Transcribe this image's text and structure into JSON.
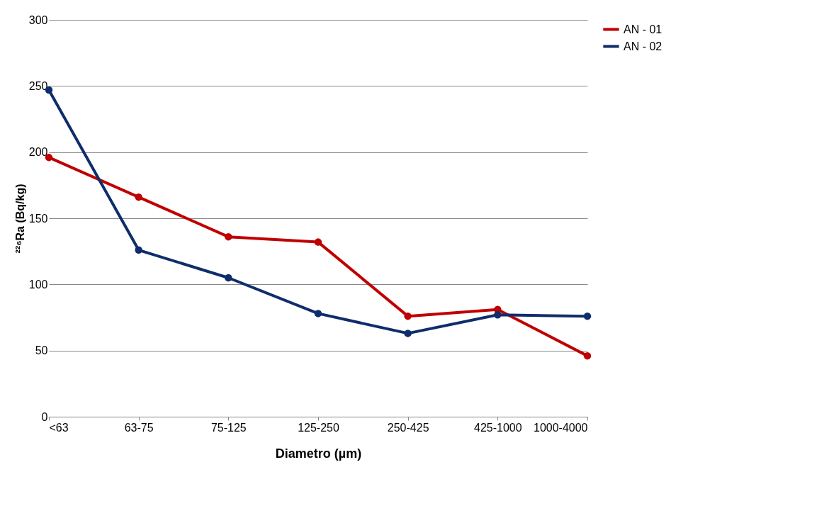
{
  "chart_data": {
    "type": "line",
    "xlabel": "Diametro (µm)",
    "ylabel": "²²⁶Ra (Bq/kg)",
    "categories": [
      "<63",
      "63-75",
      "75-125",
      "125-250",
      "250-425",
      "425-1000",
      "1000-4000"
    ],
    "series": [
      {
        "name": "AN - 01",
        "color": "#c00000",
        "values": [
          196,
          166,
          136,
          132,
          76,
          81,
          46
        ]
      },
      {
        "name": "AN - 02",
        "color": "#0f2d6b",
        "values": [
          247,
          126,
          105,
          78,
          63,
          77,
          76
        ]
      }
    ],
    "ylim": [
      0,
      300
    ],
    "yticks": [
      0,
      50,
      100,
      150,
      200,
      250,
      300
    ],
    "grid": "y",
    "legend": "right",
    "marker": "circle",
    "line_style": "solid"
  }
}
